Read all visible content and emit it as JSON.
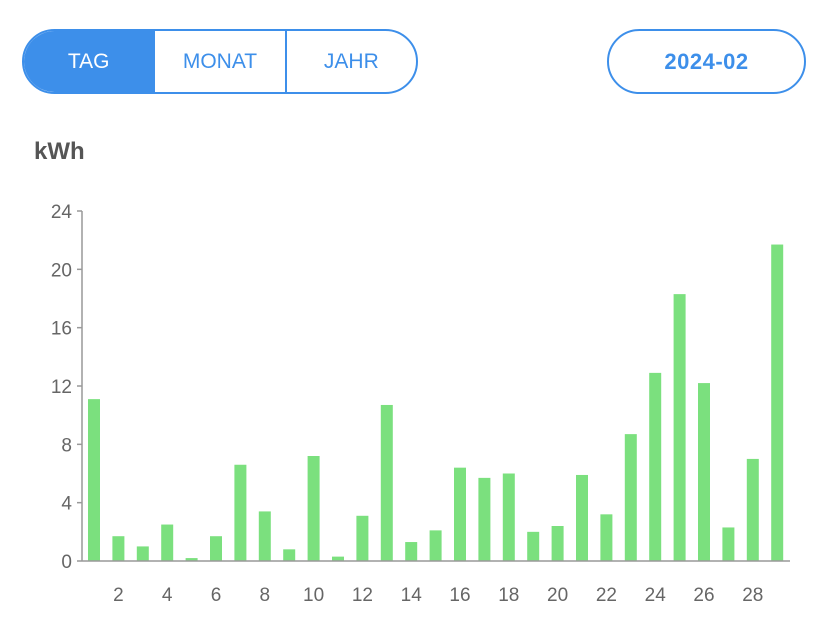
{
  "tabs": [
    {
      "label": "TAG",
      "active": true
    },
    {
      "label": "MONAT",
      "active": false
    },
    {
      "label": "JAHR",
      "active": false
    }
  ],
  "date_selector": {
    "label": "2024-02"
  },
  "colors": {
    "accent": "#3d8fea",
    "bar": "#7be07e",
    "axis": "#999999",
    "text": "#666666"
  },
  "chart_data": {
    "type": "bar",
    "title": "",
    "ylabel": "kWh",
    "xlabel": "",
    "ylim": [
      0,
      24
    ],
    "yticks": [
      0,
      4,
      8,
      12,
      16,
      20,
      24
    ],
    "xtick_labels": [
      "2",
      "4",
      "6",
      "8",
      "10",
      "12",
      "14",
      "16",
      "18",
      "20",
      "22",
      "24",
      "26",
      "28"
    ],
    "categories": [
      1,
      2,
      3,
      4,
      5,
      6,
      7,
      8,
      9,
      10,
      11,
      12,
      13,
      14,
      15,
      16,
      17,
      18,
      19,
      20,
      21,
      22,
      23,
      24,
      25,
      26,
      27,
      28,
      29
    ],
    "values": [
      11.1,
      1.7,
      1.0,
      2.5,
      0.2,
      1.7,
      6.6,
      3.4,
      0.8,
      7.2,
      0.3,
      3.1,
      10.7,
      1.3,
      2.1,
      6.4,
      5.7,
      6.0,
      2.0,
      2.4,
      5.9,
      3.2,
      8.7,
      12.9,
      18.3,
      12.2,
      2.3,
      7.0,
      21.7
    ]
  }
}
